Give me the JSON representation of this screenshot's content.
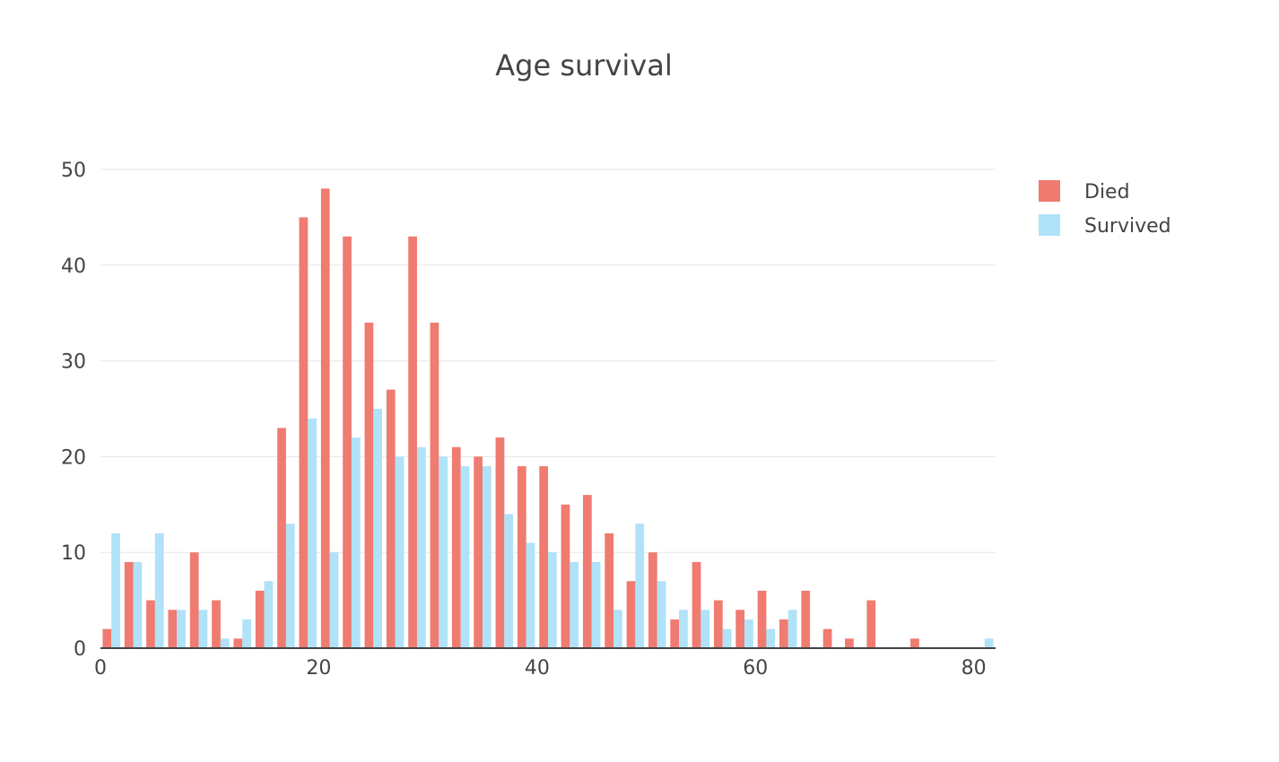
{
  "chart_data": {
    "type": "bar",
    "title": "Age survival",
    "xlabel": "",
    "ylabel": "",
    "xlim": [
      0,
      82
    ],
    "ylim": [
      0,
      50
    ],
    "bin_width": 2,
    "x_ticks": [
      0,
      20,
      40,
      60,
      80
    ],
    "y_ticks": [
      0,
      10,
      20,
      30,
      40,
      50
    ],
    "grid": true,
    "legend_position": "top-right",
    "bin_starts": [
      0,
      2,
      4,
      6,
      8,
      10,
      12,
      14,
      16,
      18,
      20,
      22,
      24,
      26,
      28,
      30,
      32,
      34,
      36,
      38,
      40,
      42,
      44,
      46,
      48,
      50,
      52,
      54,
      56,
      58,
      60,
      62,
      64,
      66,
      68,
      70,
      72,
      74,
      76,
      78,
      80
    ],
    "series": [
      {
        "name": "Died",
        "color": "#f07b70",
        "values": [
          2,
          9,
          5,
          4,
          10,
          5,
          1,
          6,
          23,
          45,
          48,
          43,
          34,
          27,
          43,
          34,
          21,
          20,
          22,
          19,
          19,
          15,
          16,
          12,
          7,
          10,
          3,
          9,
          5,
          4,
          6,
          3,
          6,
          2,
          1,
          5,
          0,
          1,
          0,
          0,
          0
        ]
      },
      {
        "name": "Survived",
        "color": "#b0e2f8",
        "values": [
          12,
          9,
          12,
          4,
          4,
          1,
          3,
          7,
          13,
          24,
          10,
          22,
          25,
          20,
          21,
          20,
          19,
          19,
          14,
          11,
          10,
          9,
          9,
          4,
          13,
          7,
          4,
          4,
          2,
          3,
          2,
          4,
          0,
          0,
          0,
          0,
          0,
          0,
          0,
          0,
          1
        ]
      }
    ]
  }
}
